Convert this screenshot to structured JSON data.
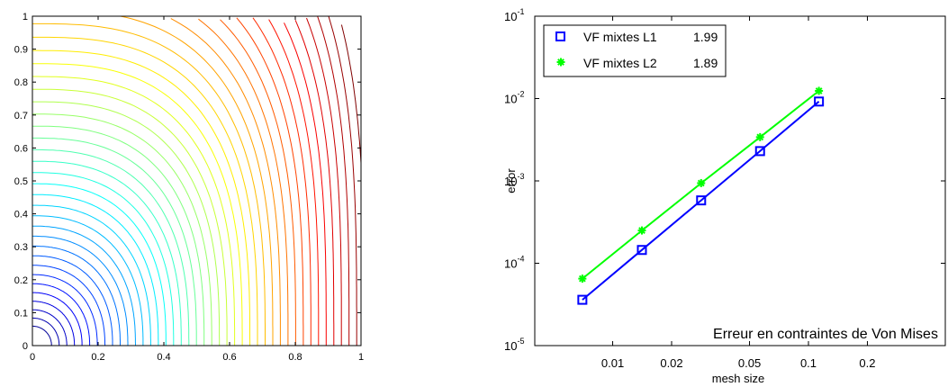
{
  "chart_data": [
    {
      "type": "contour",
      "xlim": [
        0,
        1
      ],
      "ylim": [
        0,
        1
      ],
      "x_ticks": [
        "0",
        "0.2",
        "0.4",
        "0.6",
        "0.8",
        "1"
      ],
      "y_ticks": [
        "0",
        "0.1",
        "0.2",
        "0.3",
        "0.4",
        "0.5",
        "0.6",
        "0.7",
        "0.8",
        "0.9",
        "1"
      ],
      "levels": 42,
      "colormap": "jet",
      "grid": false
    },
    {
      "type": "line",
      "xscale": "log",
      "yscale": "log",
      "xlabel": "mesh size",
      "ylabel": "error",
      "xlim": [
        0.004,
        0.5
      ],
      "ylim": [
        1e-05,
        0.1
      ],
      "x_ticks": [
        "0.01",
        "0.02",
        "0.05",
        "0.1",
        "0.2"
      ],
      "y_ticks": [
        {
          "base": "10",
          "exp": "-5"
        },
        {
          "base": "10",
          "exp": "-4"
        },
        {
          "base": "10",
          "exp": "-3"
        },
        {
          "base": "10",
          "exp": "-2"
        },
        {
          "base": "10",
          "exp": "-1"
        }
      ],
      "annotation": "Erreur en contraintes de Von Mises",
      "legend_position": "top-left",
      "series": [
        {
          "name": "VF mixtes L1",
          "slope_label": "1.99",
          "color": "#0000ff",
          "marker": "square",
          "x": [
            0.007,
            0.0141,
            0.0283,
            0.0566,
            0.1131
          ],
          "y": [
            3.6e-05,
            0.000145,
            0.00058,
            0.0023,
            0.0092
          ]
        },
        {
          "name": "VF mixtes L2",
          "slope_label": "1.89",
          "color": "#00ff00",
          "marker": "asterisk",
          "x": [
            0.007,
            0.0141,
            0.0283,
            0.0566,
            0.1131
          ],
          "y": [
            6.5e-05,
            0.00025,
            0.00094,
            0.0034,
            0.0124
          ]
        }
      ]
    }
  ]
}
